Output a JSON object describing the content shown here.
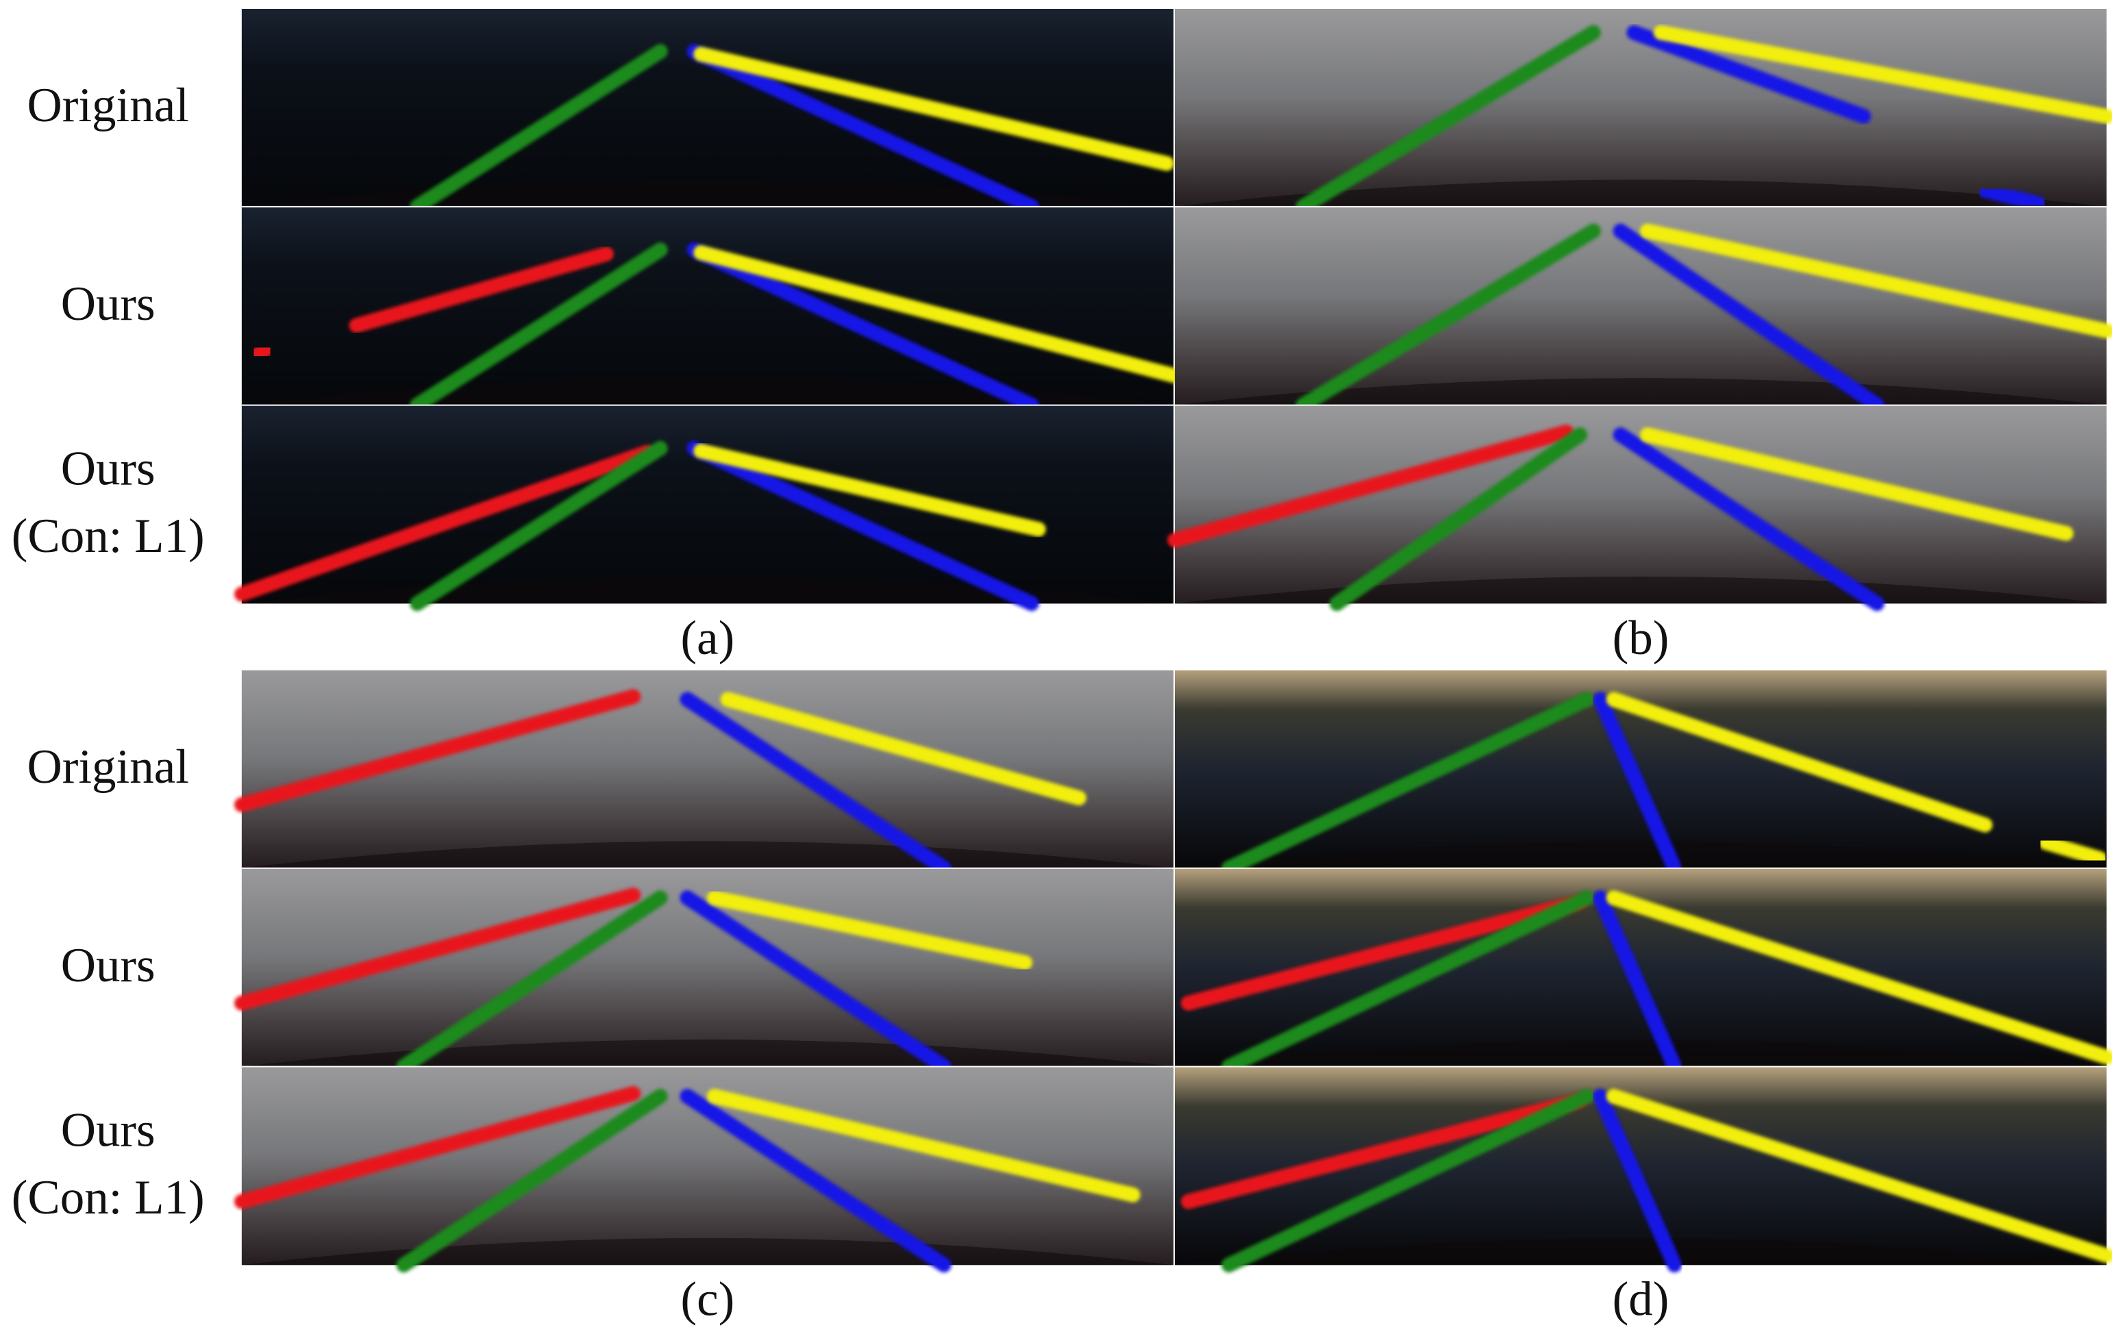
{
  "groups": [
    {
      "row_labels": [
        [
          "Original"
        ],
        [
          "Ours"
        ],
        [
          "Ours",
          "(Con: L1)"
        ]
      ],
      "panels": [
        {
          "caption": "(a)"
        },
        {
          "caption": "(b)"
        }
      ]
    },
    {
      "row_labels": [
        [
          "Original"
        ],
        [
          "Ours"
        ],
        [
          "Ours",
          "(Con: L1)"
        ]
      ],
      "panels": [
        {
          "caption": "(c)"
        },
        {
          "caption": "(d)"
        }
      ]
    }
  ]
}
